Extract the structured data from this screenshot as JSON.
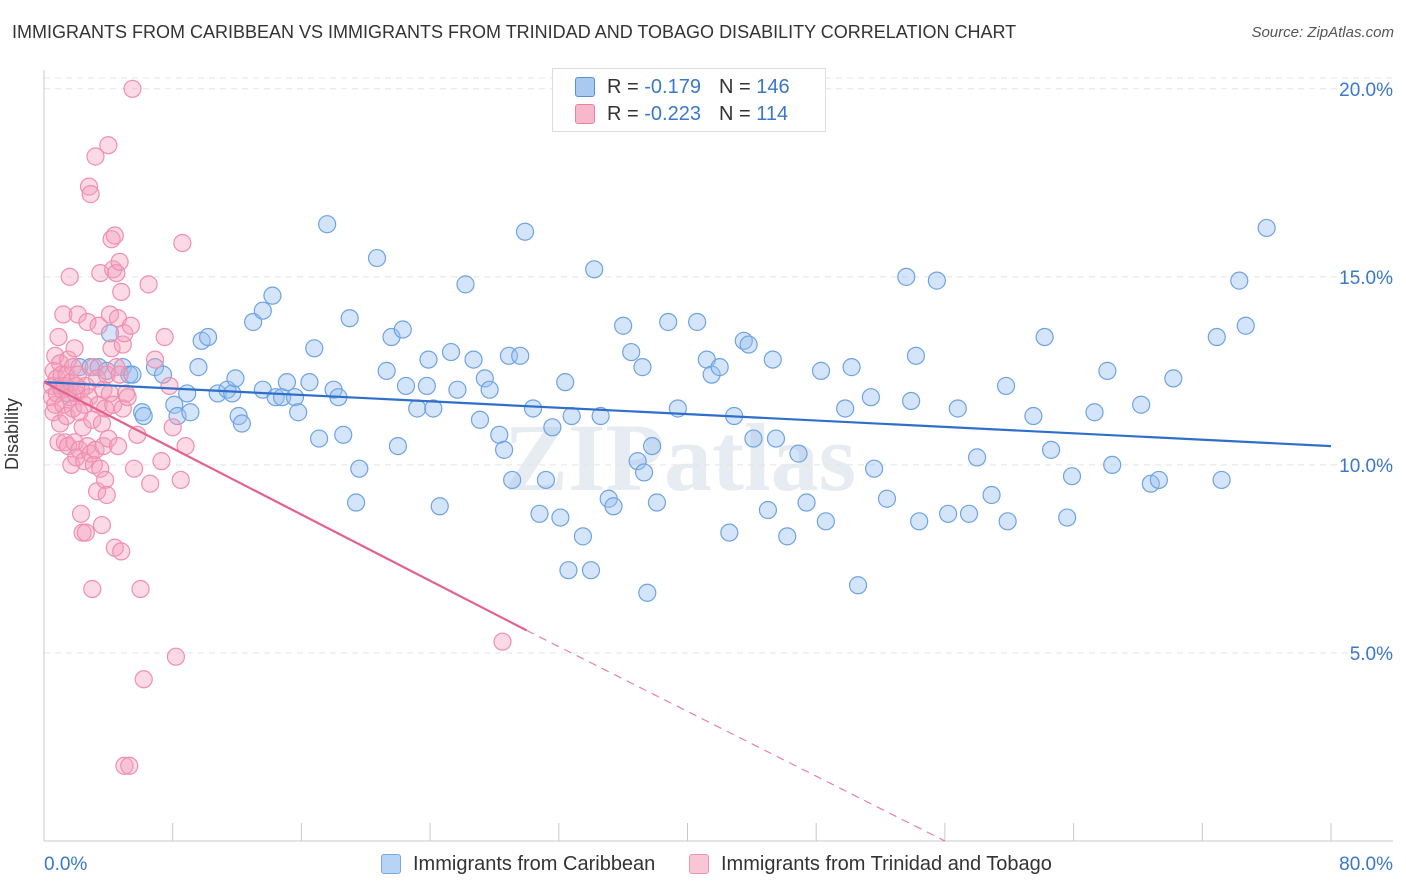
{
  "title": "IMMIGRANTS FROM CARIBBEAN VS IMMIGRANTS FROM TRINIDAD AND TOBAGO DISABILITY CORRELATION CHART",
  "source": "Source: ZipAtlas.com",
  "watermark": "ZIPatlas",
  "legend": {
    "rows": [
      {
        "r_label": "R =",
        "r_value": "-0.179",
        "n_label": "N =",
        "n_value": "146",
        "color": "#a9c9f0",
        "stroke": "#5b8fd4"
      },
      {
        "r_label": "R =",
        "r_value": "-0.223",
        "n_label": "N =",
        "n_value": "114",
        "color": "#f7b8cb",
        "stroke": "#e5829f"
      }
    ]
  },
  "bottom_legend": [
    {
      "label": "Immigrants from Caribbean",
      "color": "#b7d3f5",
      "stroke": "#7aa7e0"
    },
    {
      "label": "Immigrants from Trinidad and Tobago",
      "color": "#f9c6d5",
      "stroke": "#ec96b1"
    }
  ],
  "chart_data": {
    "type": "scatter",
    "title": "IMMIGRANTS FROM CARIBBEAN VS IMMIGRANTS FROM TRINIDAD AND TOBAGO DISABILITY CORRELATION CHART",
    "xlabel": "",
    "ylabel": "Disability",
    "xlim": [
      0,
      80
    ],
    "ylim": [
      0,
      20.5
    ],
    "x_tick_labels": [
      "0.0%",
      "80.0%"
    ],
    "y_ticks": [
      5,
      10,
      15,
      20
    ],
    "y_tick_labels": [
      "5.0%",
      "10.0%",
      "15.0%",
      "20.0%"
    ],
    "grid": true,
    "series": [
      {
        "name": "Immigrants from Caribbean",
        "color": "#6ea3e2",
        "points": [
          [
            1.0,
            12.1
          ],
          [
            1.5,
            11.9
          ],
          [
            2.2,
            12.6
          ],
          [
            2.9,
            12.6
          ],
          [
            3.4,
            12.6
          ],
          [
            3.9,
            12.5
          ],
          [
            4.1,
            13.5
          ],
          [
            4.9,
            12.6
          ],
          [
            5.3,
            12.4
          ],
          [
            5.5,
            12.4
          ],
          [
            6.1,
            11.4
          ],
          [
            6.2,
            11.3
          ],
          [
            6.9,
            12.6
          ],
          [
            7.4,
            12.4
          ],
          [
            8.1,
            11.6
          ],
          [
            8.3,
            11.3
          ],
          [
            8.9,
            11.9
          ],
          [
            9.1,
            11.4
          ],
          [
            9.6,
            12.6
          ],
          [
            9.8,
            13.3
          ],
          [
            10.2,
            13.4
          ],
          [
            10.8,
            11.9
          ],
          [
            11.4,
            12.0
          ],
          [
            11.7,
            11.9
          ],
          [
            11.9,
            12.3
          ],
          [
            12.1,
            11.3
          ],
          [
            12.3,
            11.1
          ],
          [
            13.0,
            13.8
          ],
          [
            13.6,
            12.0
          ],
          [
            13.6,
            14.1
          ],
          [
            14.2,
            14.5
          ],
          [
            14.4,
            11.8
          ],
          [
            14.8,
            11.8
          ],
          [
            15.1,
            12.2
          ],
          [
            15.6,
            11.8
          ],
          [
            15.8,
            11.4
          ],
          [
            16.5,
            12.2
          ],
          [
            16.8,
            13.1
          ],
          [
            17.1,
            10.7
          ],
          [
            17.6,
            16.4
          ],
          [
            18.0,
            12.0
          ],
          [
            18.3,
            11.8
          ],
          [
            18.6,
            10.8
          ],
          [
            19.0,
            13.9
          ],
          [
            19.4,
            9.0
          ],
          [
            19.6,
            9.9
          ],
          [
            20.7,
            15.5
          ],
          [
            21.3,
            12.5
          ],
          [
            21.6,
            13.4
          ],
          [
            22.0,
            10.5
          ],
          [
            22.3,
            13.6
          ],
          [
            22.5,
            12.1
          ],
          [
            23.2,
            11.5
          ],
          [
            23.8,
            12.1
          ],
          [
            23.9,
            12.8
          ],
          [
            24.2,
            11.5
          ],
          [
            24.6,
            8.9
          ],
          [
            25.3,
            13.0
          ],
          [
            25.7,
            12.0
          ],
          [
            26.2,
            14.8
          ],
          [
            26.7,
            12.8
          ],
          [
            27.1,
            11.2
          ],
          [
            27.4,
            12.3
          ],
          [
            27.7,
            12.0
          ],
          [
            28.3,
            10.8
          ],
          [
            28.6,
            10.4
          ],
          [
            28.9,
            12.9
          ],
          [
            29.1,
            9.6
          ],
          [
            29.6,
            12.9
          ],
          [
            29.9,
            16.2
          ],
          [
            30.4,
            11.5
          ],
          [
            30.8,
            8.7
          ],
          [
            31.2,
            9.6
          ],
          [
            31.6,
            11.0
          ],
          [
            32.1,
            8.6
          ],
          [
            32.4,
            12.2
          ],
          [
            32.6,
            7.2
          ],
          [
            32.8,
            11.3
          ],
          [
            33.5,
            8.1
          ],
          [
            34.0,
            7.2
          ],
          [
            34.2,
            15.2
          ],
          [
            34.6,
            11.3
          ],
          [
            35.1,
            9.1
          ],
          [
            35.4,
            8.9
          ],
          [
            36.0,
            13.7
          ],
          [
            36.5,
            13.0
          ],
          [
            36.9,
            10.1
          ],
          [
            37.2,
            12.6
          ],
          [
            37.3,
            9.8
          ],
          [
            37.5,
            6.6
          ],
          [
            37.8,
            10.5
          ],
          [
            38.1,
            9.0
          ],
          [
            38.8,
            13.8
          ],
          [
            39.4,
            11.5
          ],
          [
            40.6,
            13.8
          ],
          [
            41.2,
            12.8
          ],
          [
            41.5,
            12.4
          ],
          [
            42.6,
            8.2
          ],
          [
            42.9,
            11.3
          ],
          [
            43.5,
            13.3
          ],
          [
            43.8,
            13.2
          ],
          [
            44.1,
            10.7
          ],
          [
            45.0,
            8.8
          ],
          [
            45.3,
            12.8
          ],
          [
            45.5,
            10.7
          ],
          [
            46.2,
            8.1
          ],
          [
            46.9,
            10.3
          ],
          [
            47.4,
            9.0
          ],
          [
            48.3,
            12.5
          ],
          [
            48.6,
            8.5
          ],
          [
            49.8,
            11.5
          ],
          [
            50.2,
            12.6
          ],
          [
            50.6,
            6.8
          ],
          [
            51.4,
            11.8
          ],
          [
            51.6,
            9.9
          ],
          [
            52.4,
            9.1
          ],
          [
            53.6,
            15.0
          ],
          [
            53.9,
            11.7
          ],
          [
            54.2,
            12.9
          ],
          [
            54.4,
            8.5
          ],
          [
            55.5,
            14.9
          ],
          [
            56.2,
            8.7
          ],
          [
            56.8,
            11.5
          ],
          [
            57.5,
            8.7
          ],
          [
            58.0,
            10.2
          ],
          [
            58.9,
            9.2
          ],
          [
            59.8,
            12.1
          ],
          [
            59.9,
            8.5
          ],
          [
            61.5,
            11.3
          ],
          [
            62.2,
            13.4
          ],
          [
            62.6,
            10.4
          ],
          [
            63.6,
            8.6
          ],
          [
            63.9,
            9.7
          ],
          [
            65.3,
            11.4
          ],
          [
            66.1,
            12.5
          ],
          [
            66.4,
            10.0
          ],
          [
            68.2,
            11.6
          ],
          [
            68.8,
            9.5
          ],
          [
            69.3,
            9.6
          ],
          [
            70.2,
            12.3
          ],
          [
            72.9,
            13.4
          ],
          [
            73.2,
            9.6
          ],
          [
            74.3,
            14.9
          ],
          [
            74.7,
            13.7
          ],
          [
            76.0,
            16.3
          ],
          [
            42.0,
            12.6
          ]
        ]
      },
      {
        "name": "Immigrants from Trinidad and Tobago",
        "color": "#ef8fad",
        "points": [
          [
            0.5,
            12.1
          ],
          [
            0.5,
            11.8
          ],
          [
            0.6,
            12.5
          ],
          [
            0.6,
            11.4
          ],
          [
            0.7,
            12.9
          ],
          [
            0.7,
            11.6
          ],
          [
            0.8,
            12.3
          ],
          [
            0.8,
            11.9
          ],
          [
            0.9,
            13.4
          ],
          [
            0.9,
            10.6
          ],
          [
            1.0,
            12.7
          ],
          [
            1.0,
            11.1
          ],
          [
            1.1,
            12.4
          ],
          [
            1.1,
            12.0
          ],
          [
            1.2,
            11.6
          ],
          [
            1.2,
            14.0
          ],
          [
            1.3,
            12.1
          ],
          [
            1.3,
            10.6
          ],
          [
            1.4,
            12.4
          ],
          [
            1.4,
            11.3
          ],
          [
            1.5,
            12.8
          ],
          [
            1.5,
            10.5
          ],
          [
            1.6,
            11.8
          ],
          [
            1.6,
            15.0
          ],
          [
            1.7,
            12.2
          ],
          [
            1.7,
            10.0
          ],
          [
            1.8,
            11.5
          ],
          [
            1.8,
            12.6
          ],
          [
            1.9,
            10.6
          ],
          [
            1.9,
            13.1
          ],
          [
            2.0,
            11.9
          ],
          [
            2.0,
            10.2
          ],
          [
            2.1,
            12.4
          ],
          [
            2.1,
            14.0
          ],
          [
            2.2,
            11.4
          ],
          [
            2.2,
            10.4
          ],
          [
            2.3,
            8.7
          ],
          [
            2.3,
            12.0
          ],
          [
            2.4,
            8.2
          ],
          [
            2.4,
            11.0
          ],
          [
            2.5,
            11.6
          ],
          [
            2.5,
            10.1
          ],
          [
            2.6,
            12.1
          ],
          [
            2.6,
            8.2
          ],
          [
            2.7,
            13.8
          ],
          [
            2.7,
            10.5
          ],
          [
            2.8,
            17.4
          ],
          [
            2.8,
            11.8
          ],
          [
            2.9,
            17.2
          ],
          [
            2.9,
            10.3
          ],
          [
            3.0,
            6.7
          ],
          [
            3.0,
            11.2
          ],
          [
            3.1,
            10.0
          ],
          [
            3.1,
            12.6
          ],
          [
            3.2,
            18.2
          ],
          [
            3.2,
            10.4
          ],
          [
            3.3,
            9.3
          ],
          [
            3.3,
            12.3
          ],
          [
            3.4,
            13.7
          ],
          [
            3.4,
            11.6
          ],
          [
            3.5,
            15.1
          ],
          [
            3.5,
            9.9
          ],
          [
            3.6,
            11.1
          ],
          [
            3.6,
            8.4
          ],
          [
            3.7,
            10.5
          ],
          [
            3.7,
            12.0
          ],
          [
            3.8,
            9.6
          ],
          [
            3.8,
            11.5
          ],
          [
            3.9,
            9.2
          ],
          [
            3.9,
            12.4
          ],
          [
            4.0,
            18.5
          ],
          [
            4.0,
            10.7
          ],
          [
            4.1,
            14.0
          ],
          [
            4.1,
            11.9
          ],
          [
            4.2,
            16.0
          ],
          [
            4.2,
            13.1
          ],
          [
            4.3,
            15.2
          ],
          [
            4.3,
            11.6
          ],
          [
            4.4,
            7.8
          ],
          [
            4.4,
            16.1
          ],
          [
            4.5,
            15.1
          ],
          [
            4.5,
            12.6
          ],
          [
            4.6,
            13.9
          ],
          [
            4.6,
            10.5
          ],
          [
            4.7,
            15.4
          ],
          [
            4.7,
            12.4
          ],
          [
            4.8,
            14.6
          ],
          [
            4.8,
            7.7
          ],
          [
            4.9,
            13.2
          ],
          [
            4.9,
            11.5
          ],
          [
            5.0,
            2.0
          ],
          [
            5.0,
            13.5
          ],
          [
            5.1,
            11.9
          ],
          [
            5.2,
            11.8
          ],
          [
            5.3,
            2.0
          ],
          [
            5.4,
            13.7
          ],
          [
            5.5,
            20.0
          ],
          [
            5.6,
            9.9
          ],
          [
            5.8,
            10.8
          ],
          [
            6.0,
            6.7
          ],
          [
            6.2,
            4.3
          ],
          [
            6.5,
            14.8
          ],
          [
            6.6,
            9.5
          ],
          [
            6.9,
            12.8
          ],
          [
            7.3,
            10.1
          ],
          [
            7.5,
            13.4
          ],
          [
            7.8,
            12.1
          ],
          [
            8.0,
            11.0
          ],
          [
            8.2,
            4.9
          ],
          [
            8.5,
            9.6
          ],
          [
            8.6,
            15.9
          ],
          [
            8.8,
            10.5
          ],
          [
            28.5,
            5.3
          ],
          [
            2.0,
            12.1
          ]
        ]
      }
    ],
    "trendlines": [
      {
        "series": "Immigrants from Caribbean",
        "x": [
          0,
          80
        ],
        "y": [
          12.2,
          10.5
        ],
        "color": "#2f6fcb"
      },
      {
        "series": "Immigrants from Trinidad and Tobago",
        "x": [
          0,
          30.0
        ],
        "y": [
          12.2,
          5.6
        ],
        "color": "#e2628d",
        "dashed_extension_to": [
          56.0,
          0.0
        ]
      }
    ]
  }
}
